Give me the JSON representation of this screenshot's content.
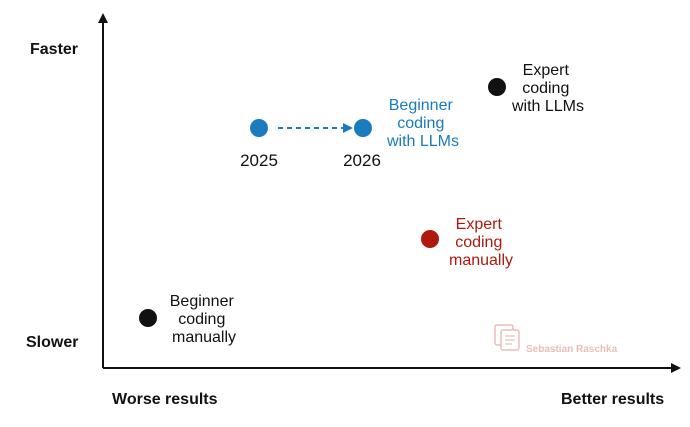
{
  "axes": {
    "y_top": "Faster",
    "y_bottom": "Slower",
    "x_left": "Worse results",
    "x_right": "Better results"
  },
  "points": [
    {
      "id": "beginner-manual",
      "label": [
        "Beginner",
        "coding",
        "manually"
      ],
      "color": "#111111",
      "label_color": "#111111"
    },
    {
      "id": "beginner-llm-2025",
      "year": "2025",
      "color": "#1a7bbf"
    },
    {
      "id": "beginner-llm-2026",
      "year": "2026",
      "color": "#1a7bbf",
      "label": [
        "Beginner",
        "coding",
        "with LLMs"
      ],
      "label_color": "#1a7bbf"
    },
    {
      "id": "expert-manual",
      "label": [
        "Expert",
        "coding",
        "manually"
      ],
      "color": "#b0190f",
      "label_color": "#b0190f"
    },
    {
      "id": "expert-llm",
      "label": [
        "Expert",
        "coding",
        "with LLMs"
      ],
      "color": "#111111",
      "label_color": "#111111"
    }
  ],
  "arrow_color": "#1a7bbf",
  "watermark": {
    "text": "Sebastian Raschka",
    "color": "#e6b8b0"
  }
}
